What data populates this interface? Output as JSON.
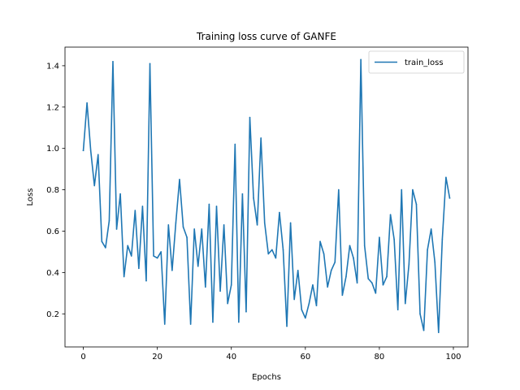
{
  "chart_data": {
    "type": "line",
    "title": "Training loss curve of GANFE",
    "xlabel": "Epochs",
    "ylabel": "Loss",
    "xlim": [
      -4.95,
      103.95
    ],
    "ylim": [
      0.04,
      1.49
    ],
    "xticks": [
      0,
      20,
      40,
      60,
      80,
      100
    ],
    "yticks": [
      0.2,
      0.4,
      0.6,
      0.8,
      1.0,
      1.2,
      1.4
    ],
    "xtick_labels": [
      "0",
      "20",
      "40",
      "60",
      "80",
      "100"
    ],
    "ytick_labels": [
      "0.2",
      "0.4",
      "0.6",
      "0.8",
      "1.0",
      "1.2",
      "1.4"
    ],
    "legend_position": "top-right",
    "grid": false,
    "series": [
      {
        "name": "train_loss",
        "color": "#1f77b4",
        "x": [
          0,
          1,
          2,
          3,
          4,
          5,
          6,
          7,
          8,
          9,
          10,
          11,
          12,
          13,
          14,
          15,
          16,
          17,
          18,
          19,
          20,
          21,
          22,
          23,
          24,
          25,
          26,
          27,
          28,
          29,
          30,
          31,
          32,
          33,
          34,
          35,
          36,
          37,
          38,
          39,
          40,
          41,
          42,
          43,
          44,
          45,
          46,
          47,
          48,
          49,
          50,
          51,
          52,
          53,
          54,
          55,
          56,
          57,
          58,
          59,
          60,
          61,
          62,
          63,
          64,
          65,
          66,
          67,
          68,
          69,
          70,
          71,
          72,
          73,
          74,
          75,
          76,
          77,
          78,
          79,
          80,
          81,
          82,
          83,
          84,
          85,
          86,
          87,
          88,
          89,
          90,
          91,
          92,
          93,
          94,
          95,
          96,
          97,
          98,
          99
        ],
        "values": [
          0.99,
          1.22,
          0.99,
          0.82,
          0.97,
          0.55,
          0.52,
          0.65,
          1.42,
          0.61,
          0.78,
          0.38,
          0.53,
          0.48,
          0.7,
          0.42,
          0.72,
          0.36,
          1.41,
          0.48,
          0.47,
          0.5,
          0.15,
          0.63,
          0.41,
          0.64,
          0.85,
          0.62,
          0.57,
          0.15,
          0.61,
          0.43,
          0.61,
          0.33,
          0.73,
          0.16,
          0.72,
          0.31,
          0.63,
          0.25,
          0.34,
          1.02,
          0.16,
          0.78,
          0.21,
          1.15,
          0.76,
          0.63,
          1.05,
          0.64,
          0.49,
          0.51,
          0.47,
          0.69,
          0.51,
          0.14,
          0.64,
          0.27,
          0.41,
          0.22,
          0.18,
          0.25,
          0.34,
          0.24,
          0.55,
          0.49,
          0.33,
          0.41,
          0.45,
          0.8,
          0.29,
          0.38,
          0.53,
          0.47,
          0.35,
          1.43,
          0.53,
          0.37,
          0.35,
          0.3,
          0.57,
          0.34,
          0.38,
          0.68,
          0.56,
          0.22,
          0.8,
          0.25,
          0.44,
          0.8,
          0.73,
          0.2,
          0.12,
          0.51,
          0.61,
          0.45,
          0.11,
          0.56,
          0.86,
          0.76
        ]
      }
    ]
  }
}
